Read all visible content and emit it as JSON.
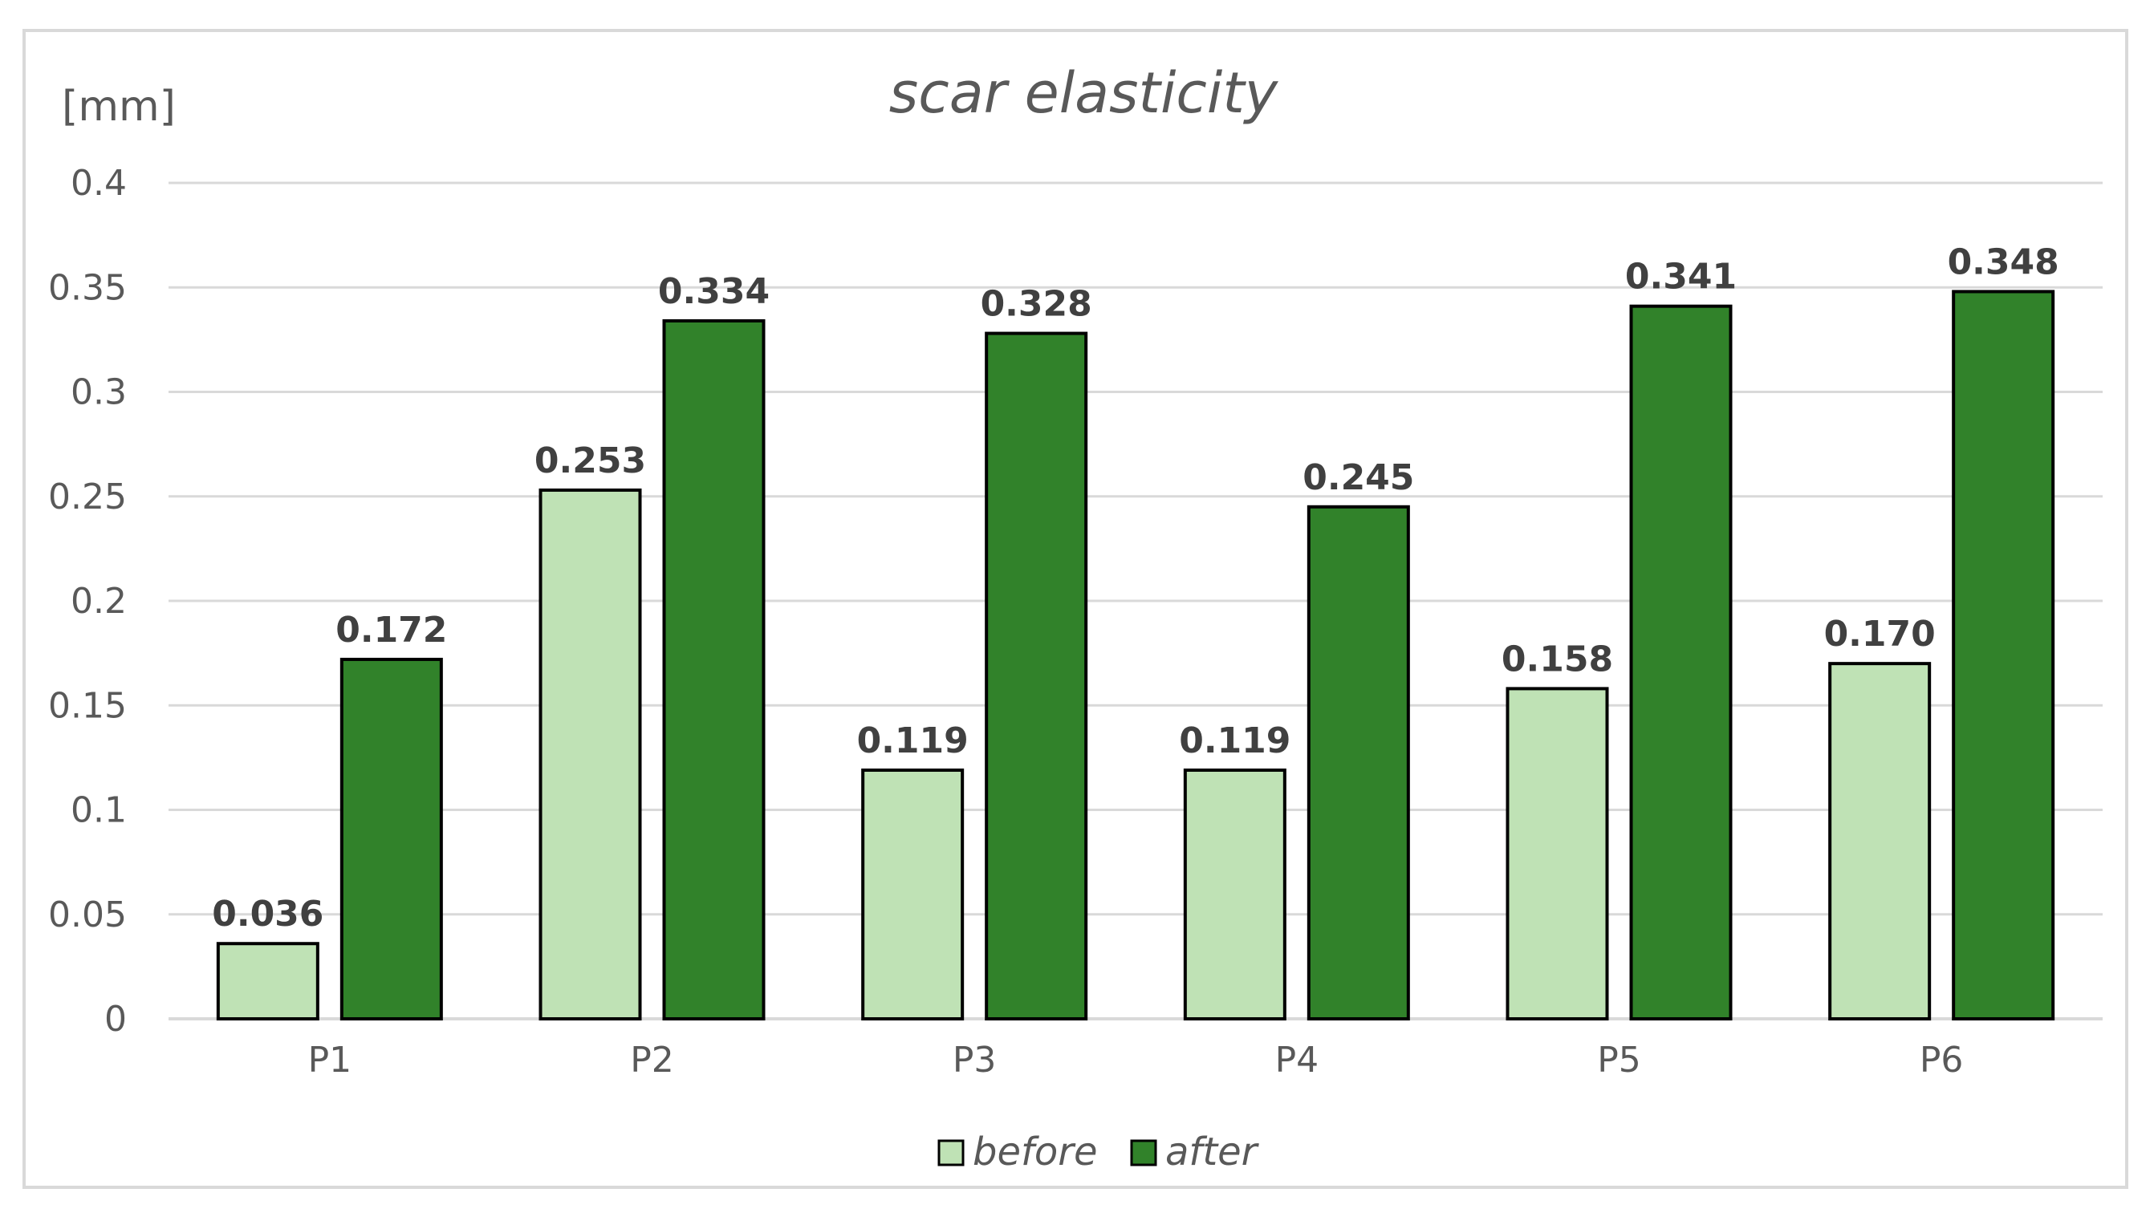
{
  "chart_data": {
    "type": "bar",
    "title": "scar elasticity",
    "ylabel": "[mm]",
    "xlabel": "",
    "ylim": [
      0,
      0.4
    ],
    "yticks": [
      0,
      0.05,
      0.1,
      0.15,
      0.2,
      0.25,
      0.3,
      0.35,
      0.4
    ],
    "ytick_labels": [
      "0",
      "0.05",
      "0.1",
      "0.15",
      "0.2",
      "0.25",
      "0.3",
      "0.35",
      "0.4"
    ],
    "categories": [
      "P1",
      "P2",
      "P3",
      "P4",
      "P5",
      "P6"
    ],
    "series": [
      {
        "name": "before",
        "color": "#bfe2b5",
        "values": [
          0.036,
          0.253,
          0.119,
          0.119,
          0.158,
          0.17
        ],
        "labels": [
          "0.036",
          "0.253",
          "0.119",
          "0.119",
          "0.158",
          "0.170"
        ]
      },
      {
        "name": "after",
        "color": "#31822a",
        "values": [
          0.172,
          0.334,
          0.328,
          0.245,
          0.341,
          0.348
        ],
        "labels": [
          "0.172",
          "0.334",
          "0.328",
          "0.245",
          "0.341",
          "0.348"
        ]
      }
    ],
    "grid": true,
    "legend_position": "bottom-center",
    "bar_outline_color": "#000000",
    "gridline_color": "#d9d9d9"
  }
}
